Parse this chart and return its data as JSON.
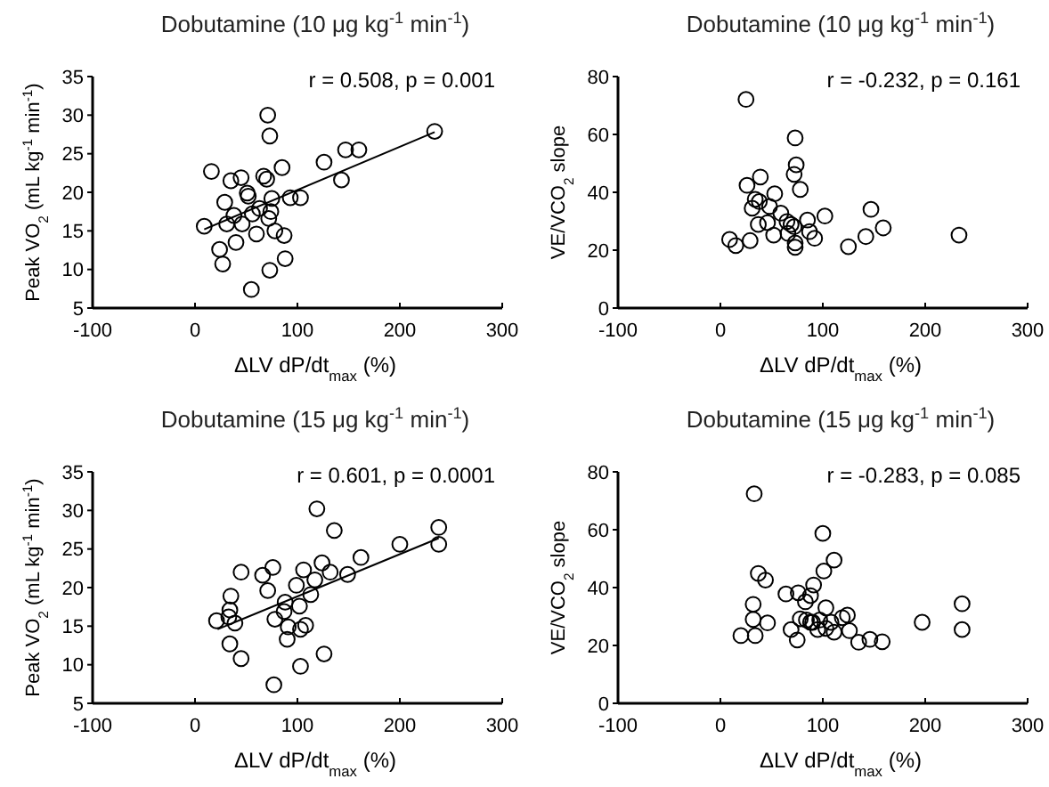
{
  "chart_data": [
    {
      "type": "scatter",
      "title": "Dobutamine (10 μg kg$^{-1}$ min$^{-1}$)",
      "xlabel": "ΔLV dP/dt$_{max}$ (%)",
      "ylabel": "Peak VO$_{2}$ (mL kg$^{-1}$ min$^{-1}$)",
      "annotations": [
        "r = 0.508, p = 0.001"
      ],
      "xlim": [
        -100,
        300
      ],
      "xticks": [
        -100,
        0,
        100,
        200,
        300
      ],
      "ylim": [
        5,
        35
      ],
      "yticks": [
        5,
        10,
        15,
        20,
        25,
        30,
        35
      ],
      "grid": false,
      "marker": "circle",
      "series": [
        {
          "color": "#000000",
          "x": [
            9,
            16,
            24,
            27,
            29,
            31,
            35,
            38,
            40,
            45,
            46,
            51,
            52,
            56,
            55,
            60,
            63,
            67,
            70,
            71,
            73,
            73,
            72,
            74,
            75,
            78,
            85,
            87,
            88,
            93,
            103,
            126,
            147,
            160,
            143,
            234
          ],
          "values": [
            15.6,
            22.7,
            12.6,
            10.7,
            18.7,
            15.9,
            21.5,
            17.0,
            13.5,
            21.9,
            15.9,
            19.9,
            19.5,
            17.2,
            7.4,
            14.6,
            17.9,
            22.1,
            21.7,
            30.0,
            27.3,
            9.9,
            16.6,
            17.5,
            19.2,
            15.0,
            23.2,
            14.4,
            11.4,
            19.3,
            19.3,
            23.9,
            25.5,
            25.5,
            21.6,
            27.9
          ]
        },
        {
          "type": "line",
          "color": "#000000",
          "line_style": "solid",
          "marker": "none",
          "x": [
            9,
            234
          ],
          "values": [
            15.2,
            27.8
          ]
        }
      ]
    },
    {
      "type": "scatter",
      "title": "Dobutamine (10 μg kg$^{-1}$ min$^{-1}$)",
      "xlabel": "ΔLV dP/dt$_{max}$ (%)",
      "ylabel": "VE/VCO$_{2}$ slope",
      "annotations": [
        "r = -0.232, p = 0.161"
      ],
      "xlim": [
        -100,
        300
      ],
      "xticks": [
        -100,
        0,
        100,
        200,
        300
      ],
      "ylim": [
        0,
        80
      ],
      "yticks": [
        0,
        20,
        40,
        60,
        80
      ],
      "grid": false,
      "marker": "circle",
      "series": [
        {
          "color": "#000000",
          "x": [
            25,
            73,
            74,
            72,
            39,
            26,
            78,
            53,
            34,
            38,
            31,
            48,
            59,
            102,
            147,
            159,
            37,
            46,
            52,
            65,
            69,
            72,
            85,
            87,
            92,
            73,
            73,
            9,
            15,
            29,
            125,
            142,
            233,
            66
          ],
          "values": [
            72.1,
            58.8,
            49.5,
            46.2,
            45.3,
            42.4,
            41.0,
            39.5,
            37.6,
            36.8,
            34.5,
            35.1,
            32.8,
            31.8,
            34.1,
            27.7,
            28.9,
            29.5,
            25.2,
            29.9,
            28.9,
            28.1,
            30.4,
            26.4,
            24.1,
            22.5,
            21.0,
            23.7,
            21.6,
            23.3,
            21.2,
            24.7,
            25.2,
            25.8
          ]
        }
      ]
    },
    {
      "type": "scatter",
      "title": "Dobutamine (15 μg kg$^{-1}$ min$^{-1}$)",
      "xlabel": "ΔLV dP/dt$_{max}$ (%)",
      "ylabel": "Peak VO$_{2}$ (mL kg$^{-1}$ min$^{-1}$)",
      "annotations": [
        "r = 0.601, p = 0.0001"
      ],
      "xlim": [
        -100,
        300
      ],
      "xticks": [
        -100,
        0,
        100,
        200,
        300
      ],
      "ylim": [
        5,
        35
      ],
      "yticks": [
        5,
        10,
        15,
        20,
        25,
        30,
        35
      ],
      "grid": false,
      "marker": "circle",
      "series": [
        {
          "color": "#000000",
          "x": [
            21,
            35,
            34,
            33,
            39,
            34,
            45,
            45,
            66,
            76,
            71,
            78,
            77,
            87,
            88,
            91,
            90,
            99,
            102,
            103,
            103,
            106,
            113,
            117,
            119,
            124,
            126,
            132,
            136,
            149,
            162,
            200,
            238,
            238,
            108
          ],
          "values": [
            15.7,
            18.9,
            17.1,
            16.2,
            15.4,
            12.7,
            10.8,
            22.0,
            21.6,
            22.6,
            19.6,
            15.9,
            7.4,
            16.9,
            18.1,
            14.9,
            13.3,
            20.3,
            17.6,
            14.6,
            9.8,
            22.3,
            19.1,
            21.0,
            30.2,
            23.2,
            11.4,
            22.0,
            27.4,
            21.7,
            23.9,
            25.6,
            27.8,
            25.6,
            15.1
          ]
        },
        {
          "type": "line",
          "color": "#000000",
          "line_style": "solid",
          "marker": "none",
          "x": [
            22,
            238
          ],
          "values": [
            14.6,
            26.4
          ]
        }
      ]
    },
    {
      "type": "scatter",
      "title": "Dobutamine (15 μg kg$^{-1}$ min$^{-1}$)",
      "xlabel": "ΔLV dP/dt$_{max}$ (%)",
      "ylabel": "VE/VCO$_{2}$ slope",
      "annotations": [
        "r = -0.283, p = 0.085"
      ],
      "xlim": [
        -100,
        300
      ],
      "xticks": [
        -100,
        0,
        100,
        200,
        300
      ],
      "ylim": [
        0,
        80
      ],
      "yticks": [
        0,
        20,
        40,
        60,
        80
      ],
      "grid": false,
      "marker": "circle",
      "series": [
        {
          "color": "#000000",
          "x": [
            33,
            100,
            111,
            101,
            37,
            44,
            91,
            76,
            64,
            88,
            83,
            32,
            236,
            32,
            46,
            78,
            84,
            88,
            97,
            103,
            108,
            124,
            119,
            197,
            236,
            20,
            34,
            69,
            75,
            95,
            103,
            111,
            126,
            135,
            146,
            158,
            90
          ],
          "values": [
            72.4,
            58.7,
            49.5,
            45.7,
            44.9,
            42.6,
            40.9,
            38.2,
            37.8,
            37.2,
            35.1,
            34.2,
            34.4,
            29.0,
            27.8,
            29.2,
            28.8,
            28.0,
            28.8,
            33.0,
            28.0,
            30.5,
            29.6,
            28.0,
            25.5,
            23.4,
            23.4,
            25.5,
            21.9,
            25.5,
            25.9,
            24.6,
            25.1,
            21.1,
            22.1,
            21.3,
            28.0
          ]
        }
      ]
    }
  ]
}
